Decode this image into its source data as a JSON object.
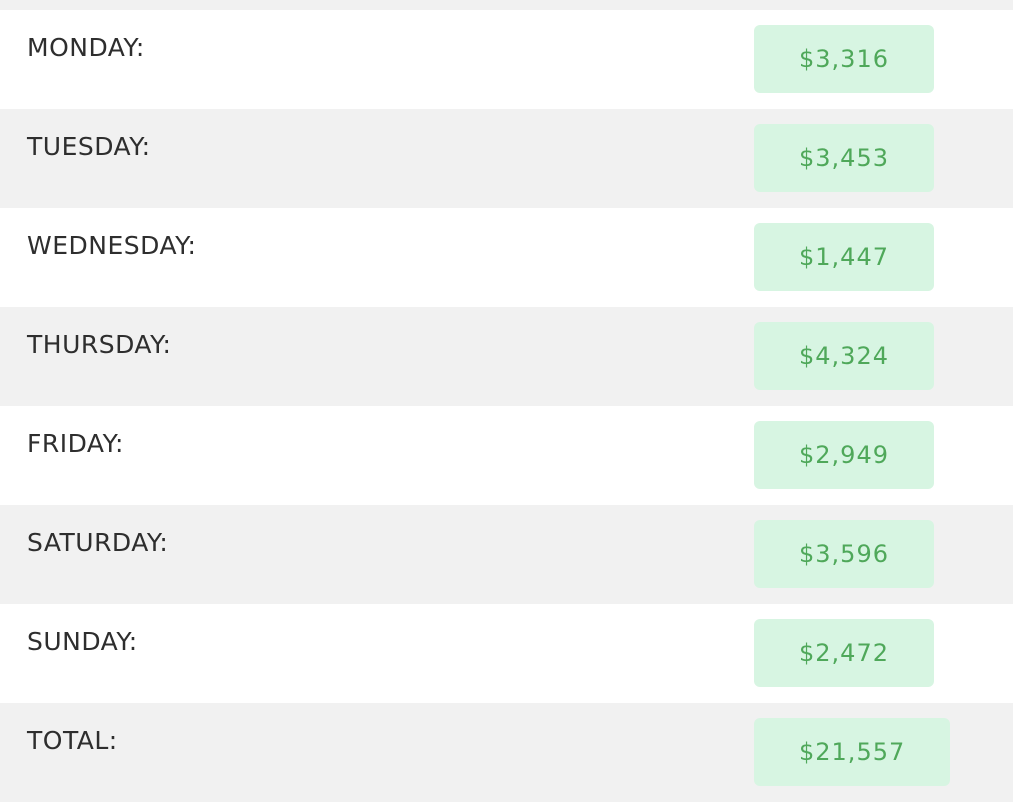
{
  "rows": [
    {
      "label": "MONDAY:",
      "value": "$3,316"
    },
    {
      "label": "TUESDAY:",
      "value": "$3,453"
    },
    {
      "label": "WEDNESDAY:",
      "value": "$1,447"
    },
    {
      "label": "THURSDAY:",
      "value": "$4,324"
    },
    {
      "label": "FRIDAY:",
      "value": "$2,949"
    },
    {
      "label": "SATURDAY:",
      "value": "$3,596"
    },
    {
      "label": "SUNDAY:",
      "value": "$2,472"
    },
    {
      "label": "TOTAL:",
      "value": "$21,557"
    }
  ]
}
